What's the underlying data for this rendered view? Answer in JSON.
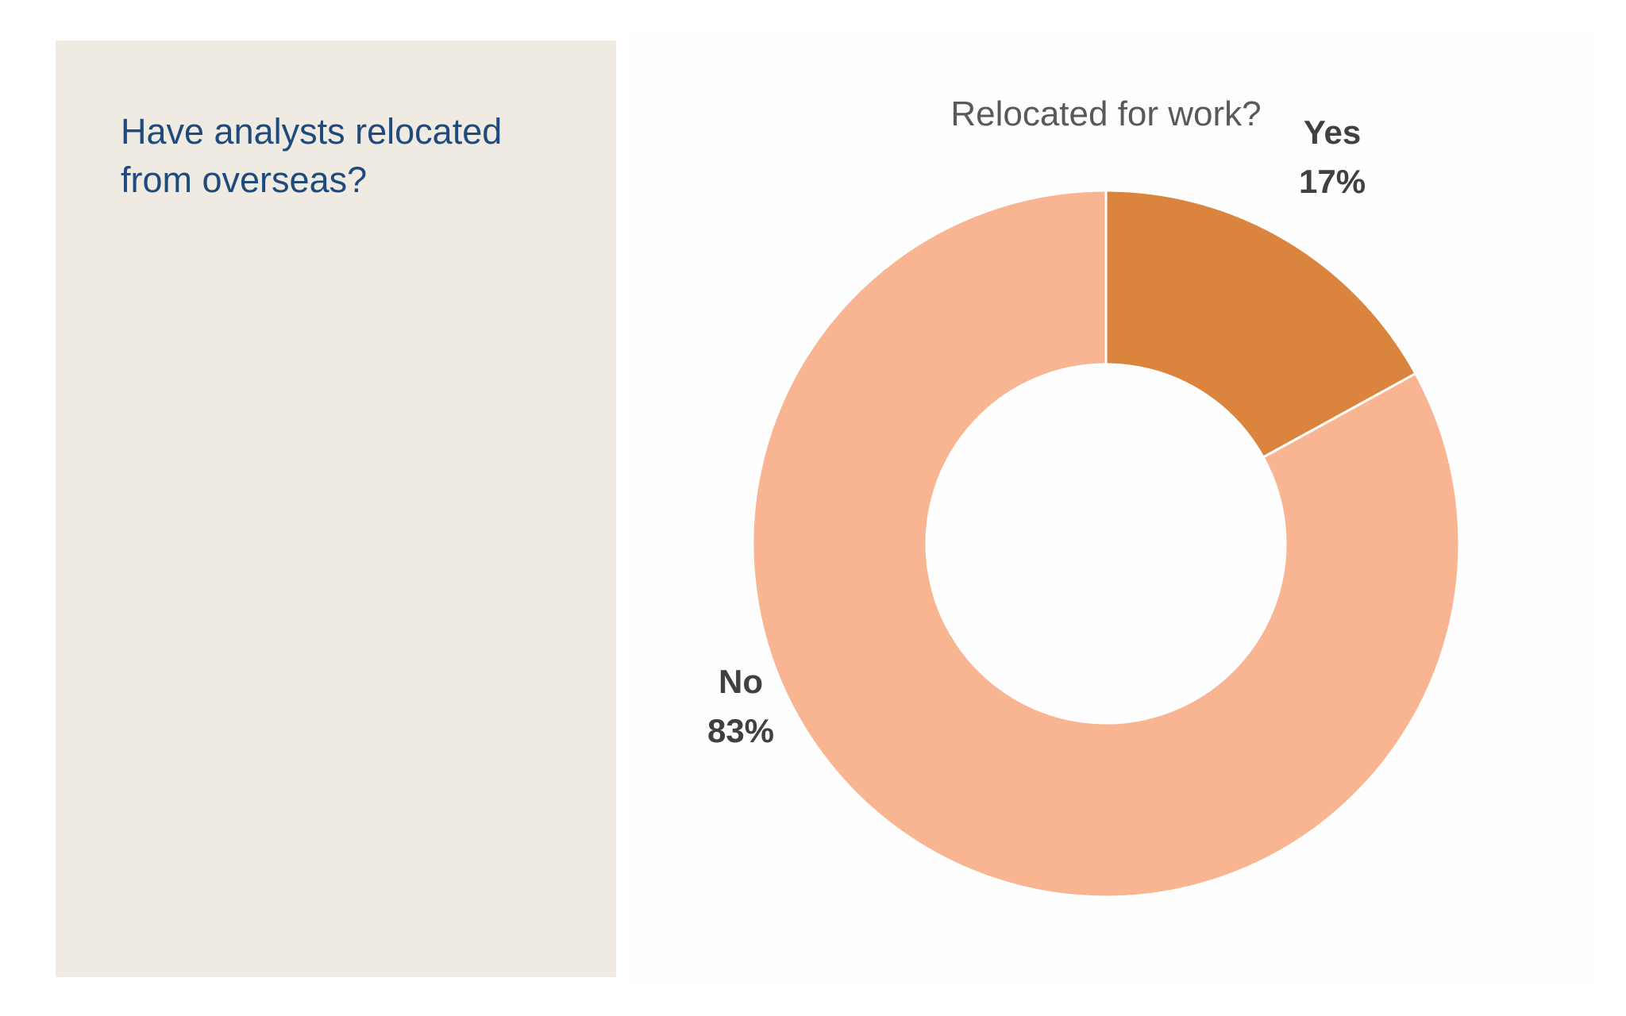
{
  "side": {
    "question": "Have analysts relocated from overseas?"
  },
  "colors": {
    "panel": "#efeae2",
    "question_text": "#1f4a7c",
    "title_text": "#595959",
    "label_text": "#404040",
    "separator": "#ffffff"
  },
  "chart_data": {
    "type": "pie",
    "variant": "donut",
    "title": "Relocated for work?",
    "slices": [
      {
        "label": "Yes",
        "value": 17,
        "display": "17%",
        "color": "#db843d"
      },
      {
        "label": "No",
        "value": 83,
        "display": "83%",
        "color": "#f9b592"
      }
    ],
    "legend": "none",
    "data_labels": "outside"
  }
}
